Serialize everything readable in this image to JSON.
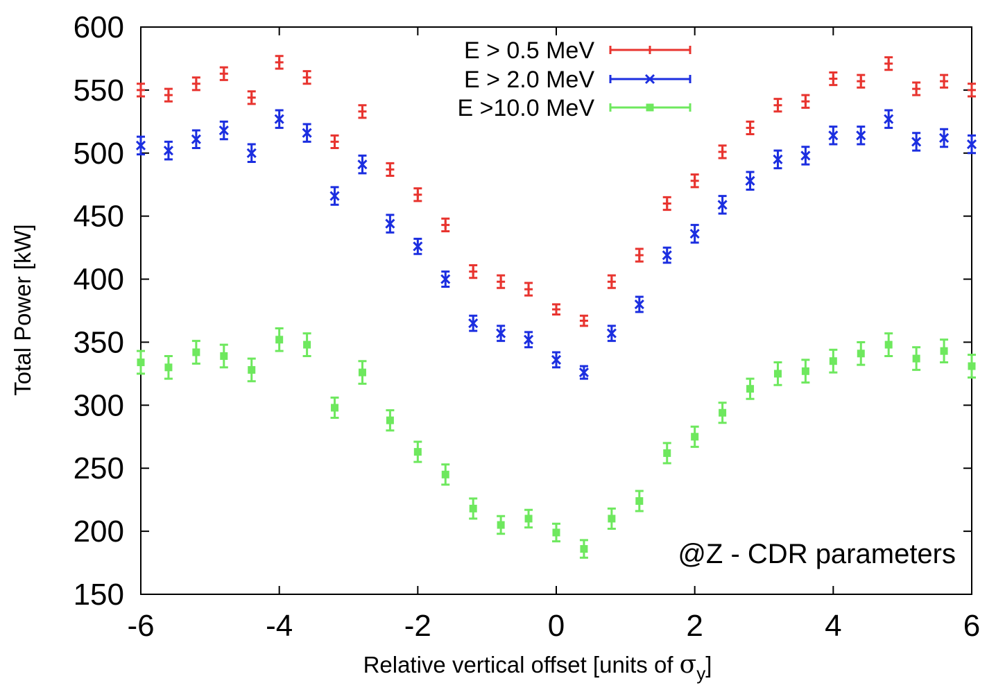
{
  "chart_data": {
    "type": "scatter",
    "title": "",
    "xlabel": "Relative vertical offset [units of ",
    "xlabel_symbol": "σ",
    "xlabel_subscript": "y",
    "xlabel_close": "]",
    "ylabel": "Total Power [kW]",
    "xlim": [
      -6,
      6
    ],
    "ylim": [
      150,
      600
    ],
    "xticks": [
      -6,
      -4,
      -2,
      0,
      2,
      4,
      6
    ],
    "xtick_labels": [
      "-6",
      "-4",
      "-2",
      "0",
      "2",
      "4",
      "6"
    ],
    "yticks": [
      150,
      200,
      250,
      300,
      350,
      400,
      450,
      500,
      550,
      600
    ],
    "ytick_labels": [
      "150",
      "200",
      "250",
      "300",
      "350",
      "400",
      "450",
      "500",
      "550",
      "600"
    ],
    "grid": false,
    "legend_position": "top-center",
    "annotation": "@Z - CDR parameters",
    "x": [
      -6.0,
      -5.6,
      -5.2,
      -4.8,
      -4.4,
      -4.0,
      -3.6,
      -3.2,
      -2.8,
      -2.4,
      -2.0,
      -1.6,
      -1.2,
      -0.8,
      -0.4,
      0.0,
      0.4,
      0.8,
      1.2,
      1.6,
      2.0,
      2.4,
      2.8,
      3.2,
      3.6,
      4.0,
      4.4,
      4.8,
      5.2,
      5.6,
      6.0
    ],
    "series": [
      {
        "name": "E > 0.5 MeV",
        "color": "#e8342f",
        "marker": "plus",
        "values": [
          550,
          546,
          555,
          563,
          544,
          572,
          560,
          509,
          533,
          487,
          467,
          443,
          406,
          398,
          392,
          376,
          367,
          398,
          419,
          460,
          478,
          501,
          520,
          538,
          541,
          559,
          557,
          571,
          551,
          557,
          550
        ],
        "errors": [
          5,
          5,
          5,
          5,
          5,
          5,
          5,
          5,
          5,
          5,
          5,
          5,
          5,
          5,
          5,
          4,
          4,
          5,
          5,
          5,
          5,
          5,
          5,
          5,
          5,
          5,
          5,
          5,
          5,
          5,
          5
        ]
      },
      {
        "name": "E > 2.0 MeV",
        "color": "#1b2ee0",
        "marker": "cross",
        "values": [
          506,
          502,
          511,
          518,
          500,
          527,
          516,
          466,
          491,
          444,
          426,
          400,
          365,
          357,
          352,
          336,
          326,
          357,
          380,
          419,
          436,
          459,
          478,
          495,
          498,
          514,
          514,
          527,
          509,
          512,
          507
        ],
        "errors": [
          7,
          7,
          7,
          7,
          7,
          7,
          7,
          7,
          7,
          7,
          6,
          6,
          6,
          6,
          6,
          6,
          5,
          6,
          6,
          6,
          7,
          7,
          7,
          7,
          7,
          7,
          7,
          7,
          7,
          7,
          7
        ]
      },
      {
        "name": "E >10.0 MeV",
        "color": "#6ee85e",
        "marker": "square",
        "values": [
          334,
          330,
          342,
          339,
          328,
          352,
          348,
          298,
          326,
          288,
          263,
          245,
          218,
          205,
          210,
          199,
          186,
          210,
          224,
          262,
          275,
          294,
          313,
          325,
          327,
          335,
          341,
          348,
          337,
          343,
          331
        ],
        "errors": [
          9,
          9,
          9,
          9,
          9,
          9,
          9,
          8,
          9,
          8,
          8,
          8,
          8,
          7,
          7,
          7,
          7,
          8,
          8,
          8,
          8,
          8,
          8,
          9,
          9,
          9,
          9,
          9,
          9,
          9,
          9
        ]
      }
    ]
  }
}
